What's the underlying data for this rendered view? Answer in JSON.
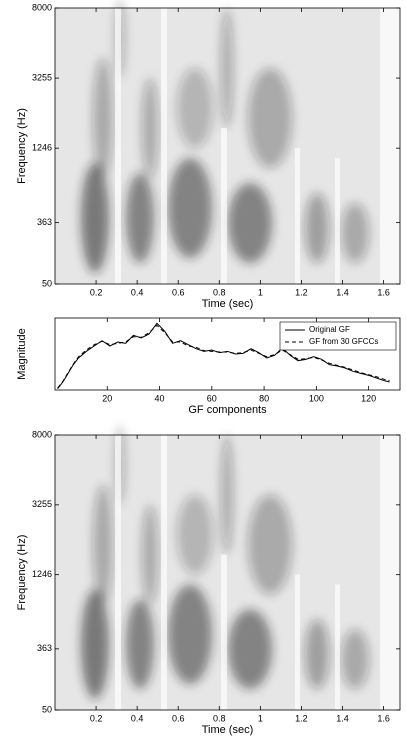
{
  "chart_data": [
    {
      "type": "spectrogram",
      "xlabel": "Time (sec)",
      "ylabel": "Frequency (Hz)",
      "xlim": [
        0,
        1.68
      ],
      "xticks": [
        0.2,
        0.4,
        0.6,
        0.8,
        1,
        1.2,
        1.4,
        1.6
      ],
      "ylim": [
        50,
        8000
      ],
      "yticks": [
        50,
        363,
        1246,
        3255,
        8000
      ],
      "yscale": "erb"
    },
    {
      "type": "line",
      "xlabel": "GF components",
      "ylabel": "Magnitude",
      "xlim": [
        0,
        132
      ],
      "xticks": [
        20,
        40,
        60,
        80,
        100,
        120
      ],
      "ylim": [
        0,
        1.08
      ],
      "legend": "upper right",
      "x": [
        1,
        3,
        5,
        7,
        9,
        12,
        15,
        18,
        21,
        24,
        27,
        30,
        33,
        36,
        39,
        42,
        45,
        48,
        51,
        54,
        57,
        60,
        63,
        66,
        69,
        72,
        75,
        78,
        81,
        84,
        87,
        90,
        93,
        96,
        99,
        102,
        105,
        108,
        111,
        114,
        117,
        120,
        123,
        126,
        128
      ],
      "series": [
        {
          "name": "Original GF",
          "color": "#000000",
          "dash": "none",
          "values": [
            0.02,
            0.12,
            0.25,
            0.38,
            0.48,
            0.58,
            0.66,
            0.74,
            0.66,
            0.72,
            0.7,
            0.82,
            0.78,
            0.84,
            1.0,
            0.88,
            0.7,
            0.74,
            0.68,
            0.62,
            0.58,
            0.6,
            0.56,
            0.58,
            0.54,
            0.55,
            0.62,
            0.56,
            0.48,
            0.52,
            0.63,
            0.52,
            0.44,
            0.46,
            0.5,
            0.46,
            0.38,
            0.36,
            0.33,
            0.28,
            0.25,
            0.22,
            0.18,
            0.14,
            0.12
          ]
        },
        {
          "name": "GF from 30 GFCCs",
          "color": "#000000",
          "dash": "4 3",
          "values": [
            0.03,
            0.13,
            0.26,
            0.39,
            0.5,
            0.6,
            0.68,
            0.73,
            0.68,
            0.7,
            0.72,
            0.8,
            0.79,
            0.86,
            0.97,
            0.86,
            0.72,
            0.72,
            0.66,
            0.64,
            0.59,
            0.58,
            0.57,
            0.57,
            0.55,
            0.56,
            0.6,
            0.55,
            0.5,
            0.53,
            0.6,
            0.53,
            0.46,
            0.47,
            0.49,
            0.45,
            0.4,
            0.37,
            0.34,
            0.3,
            0.26,
            0.23,
            0.2,
            0.16,
            0.14
          ]
        }
      ]
    },
    {
      "type": "spectrogram",
      "xlabel": "Time (sec)",
      "ylabel": "Frequency (Hz)",
      "xlim": [
        0,
        1.68
      ],
      "xticks": [
        0.2,
        0.4,
        0.6,
        0.8,
        1,
        1.2,
        1.4,
        1.6
      ],
      "ylim": [
        50,
        8000
      ],
      "yticks": [
        50,
        363,
        1246,
        3255,
        8000
      ],
      "yscale": "erb"
    }
  ]
}
